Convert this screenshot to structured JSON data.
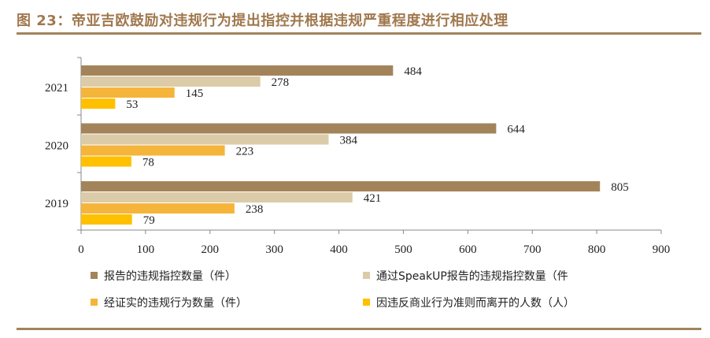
{
  "title": "图 23：帝亚吉欧鼓励对违规行为提出指控并根据违规严重程度进行相应处理",
  "chart_data": {
    "type": "bar",
    "orientation": "horizontal",
    "categories": [
      "2021",
      "2020",
      "2019"
    ],
    "series": [
      {
        "name": "报告的违规指控数量（件）",
        "values": [
          484,
          644,
          805
        ],
        "color": "#A3845A"
      },
      {
        "name": "通过SpeakUP报告的违规指控数量（件",
        "values": [
          278,
          384,
          421
        ],
        "color": "#DCCBA8"
      },
      {
        "name": "经证实的违规行为数量（件）",
        "values": [
          145,
          223,
          238
        ],
        "color": "#F5B53A"
      },
      {
        "name": "因违反商业行为准则而离开的人数（人）",
        "values": [
          53,
          78,
          79
        ],
        "color": "#FFC000"
      }
    ],
    "xlim": [
      0,
      900
    ],
    "xticks": [
      "0",
      "100",
      "200",
      "300",
      "400",
      "500",
      "600",
      "700",
      "800",
      "900"
    ],
    "grid": false,
    "legend": "bottom"
  }
}
